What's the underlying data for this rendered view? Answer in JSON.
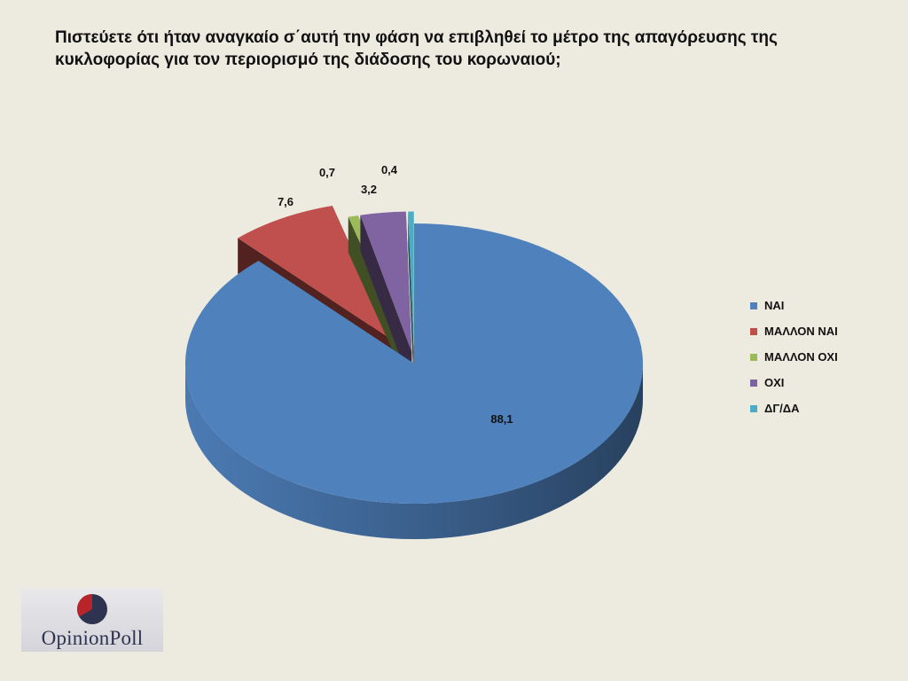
{
  "title": "Πιστεύετε ότι ήταν αναγκαίο σ΄αυτή την φάση  να επιβληθεί το μέτρο της απαγόρευσης της κυκλοφορίας για τον περιορισμό της διάδοσης του κορωναιού;",
  "chart_data": {
    "type": "pie",
    "style": "3d-exploded",
    "title": "Πιστεύετε ότι ήταν αναγκαίο σ΄αυτή την φάση  να επιβληθεί το μέτρο της απαγόρευσης της κυκλοφορίας για τον περιορισμό της διάδοσης του κορωναιού;",
    "legend_position": "right",
    "categories": [
      "ΝΑΙ",
      "ΜΑΛΛΟΝ ΝΑΙ",
      "ΜΑΛΛΟΝ ΟΧΙ",
      "ΟΧΙ",
      "ΔΓ/ΔΑ"
    ],
    "values": [
      88.1,
      7.6,
      0.7,
      3.2,
      0.4
    ],
    "labels": [
      "88,1",
      "7,6",
      "0,7",
      "3,2",
      "0,4"
    ],
    "colors": [
      "#4f81bd",
      "#c0504d",
      "#9bbb59",
      "#8064a2",
      "#4bacc6"
    ]
  },
  "logo": {
    "text": "OpinionPoll",
    "colors": [
      "#b8242a",
      "#2e3350"
    ]
  }
}
